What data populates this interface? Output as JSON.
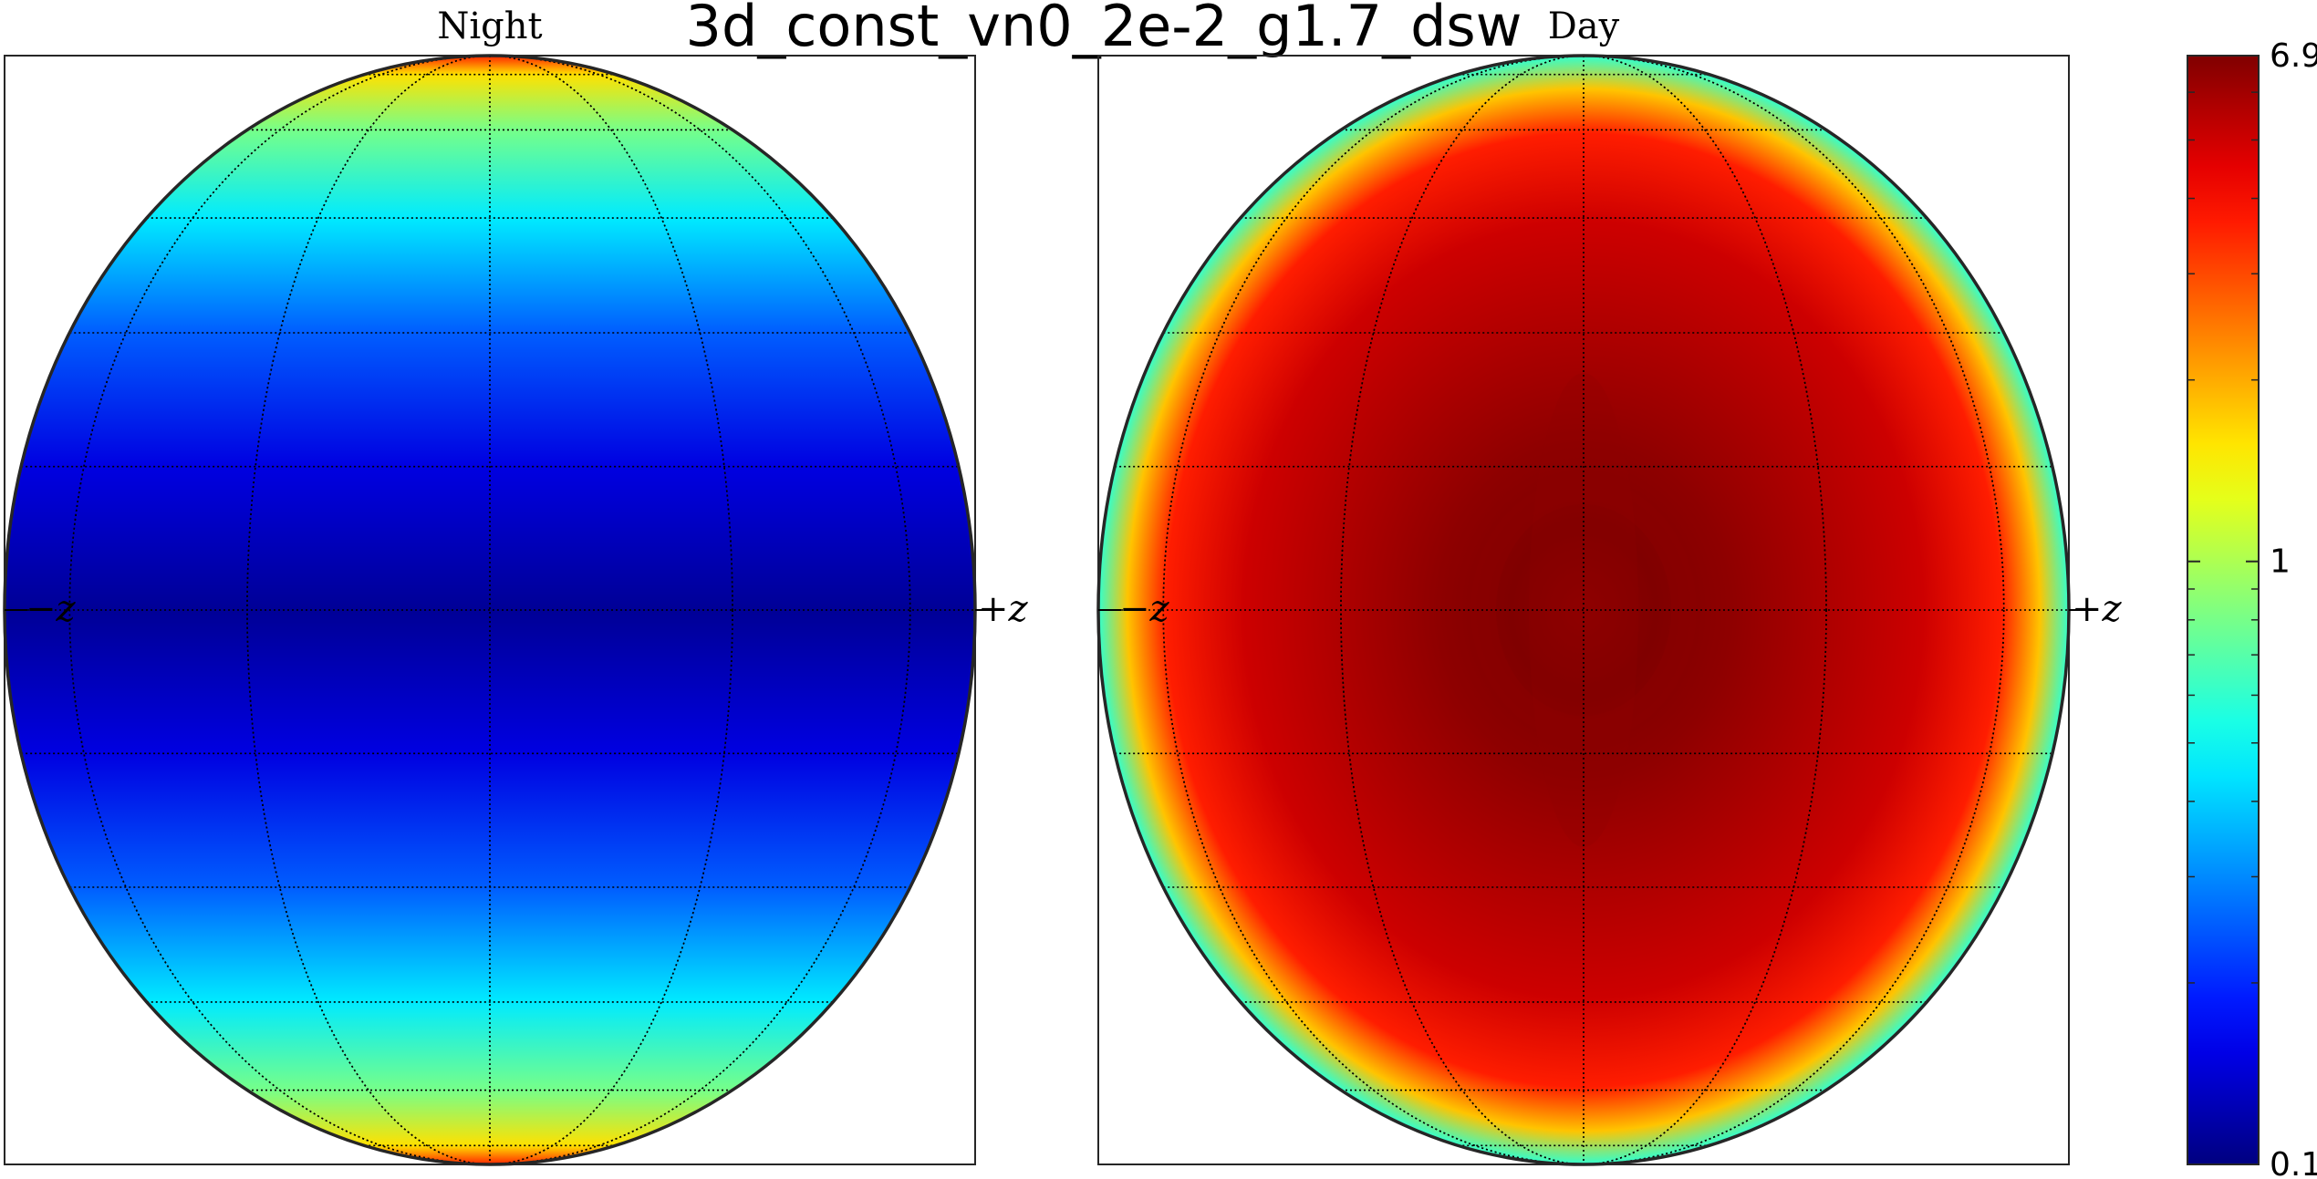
{
  "chart_data": {
    "type": "heatmap",
    "title": "3d_const_vn0_2e-2_g1.7_dsw",
    "colormap": "jet",
    "color_scale": "log",
    "clim": [
      0.1,
      6.9
    ],
    "colorbar_ticks": [
      "6.9",
      "1",
      "0.1"
    ],
    "colorbar_tick_values": [
      6.9,
      1,
      0.1
    ],
    "panels": [
      {
        "name": "Night",
        "projection": "orthographic",
        "axis_labels": [
          "−z",
          "+z"
        ],
        "latitude_profile": [
          {
            "lat": 90,
            "value": 3.5
          },
          {
            "lat": 75,
            "value": 1.6
          },
          {
            "lat": 60,
            "value": 0.8
          },
          {
            "lat": 45,
            "value": 0.45
          },
          {
            "lat": 30,
            "value": 0.25
          },
          {
            "lat": 15,
            "value": 0.15
          },
          {
            "lat": 0,
            "value": 0.11
          },
          {
            "lat": -15,
            "value": 0.15
          },
          {
            "lat": -30,
            "value": 0.25
          },
          {
            "lat": -45,
            "value": 0.45
          },
          {
            "lat": -60,
            "value": 0.8
          },
          {
            "lat": -75,
            "value": 1.6
          },
          {
            "lat": -90,
            "value": 3.5
          }
        ]
      },
      {
        "name": "Day",
        "projection": "orthographic",
        "axis_labels": [
          "−z",
          "+z"
        ],
        "center_value": 6.5,
        "limb_value": 0.6,
        "ring_value": 6.9
      }
    ]
  }
}
